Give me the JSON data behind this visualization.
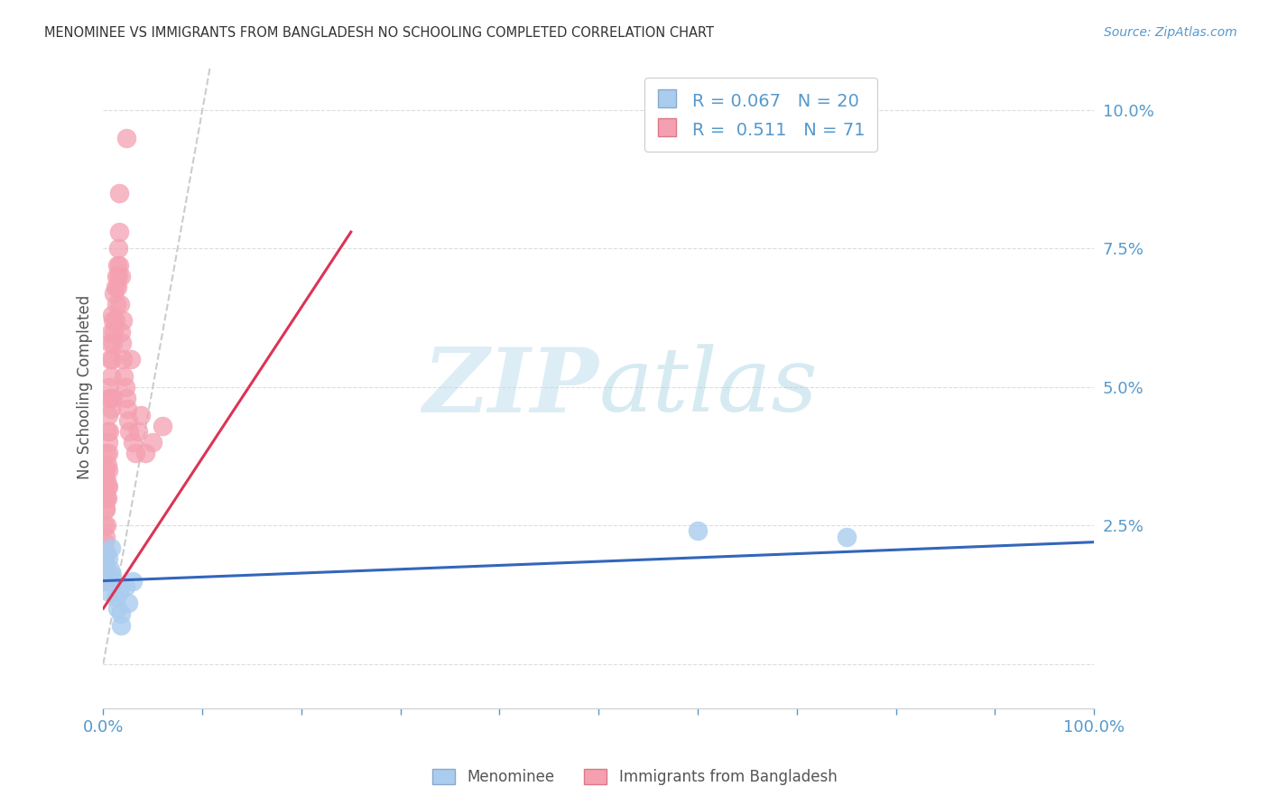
{
  "title": "MENOMINEE VS IMMIGRANTS FROM BANGLADESH NO SCHOOLING COMPLETED CORRELATION CHART",
  "source": "Source: ZipAtlas.com",
  "ylabel": "No Schooling Completed",
  "series": [
    {
      "name": "Menominee",
      "color": "#AACCEE",
      "line_color": "#3366BB",
      "R": 0.067,
      "N": 20
    },
    {
      "name": "Immigrants from Bangladesh",
      "color": "#F4A0B0",
      "line_color": "#DD3355",
      "R": 0.511,
      "N": 71
    }
  ],
  "xlim": [
    0.0,
    1.0
  ],
  "ylim": [
    -0.008,
    0.108
  ],
  "yticks": [
    0.0,
    0.025,
    0.05,
    0.075,
    0.1
  ],
  "ytick_labels": [
    "",
    "2.5%",
    "5.0%",
    "7.5%",
    "10.0%"
  ],
  "xtick_positions": [
    0.0,
    0.1,
    0.2,
    0.3,
    0.4,
    0.5,
    0.6,
    0.7,
    0.8,
    0.9,
    1.0
  ],
  "xtick_labels": [
    "0.0%",
    "",
    "",
    "",
    "",
    "",
    "",
    "",
    "",
    "",
    "100.0%"
  ],
  "grid_color": "#DDDDDD",
  "bg_color": "#FFFFFF",
  "title_color": "#333333",
  "axis_color": "#5599CC",
  "diag_color": "#CCCCCC",
  "men_x": [
    0.001,
    0.002,
    0.003,
    0.004,
    0.005,
    0.006,
    0.007,
    0.008,
    0.009,
    0.01,
    0.012,
    0.014,
    0.016,
    0.018,
    0.022,
    0.025,
    0.03,
    0.6,
    0.75,
    0.018
  ],
  "men_y": [
    0.018,
    0.015,
    0.02,
    0.016,
    0.019,
    0.013,
    0.017,
    0.021,
    0.016,
    0.015,
    0.012,
    0.01,
    0.013,
    0.009,
    0.014,
    0.011,
    0.015,
    0.024,
    0.023,
    0.007
  ],
  "ban_x": [
    0.001,
    0.001,
    0.001,
    0.002,
    0.002,
    0.002,
    0.003,
    0.003,
    0.003,
    0.004,
    0.004,
    0.004,
    0.005,
    0.005,
    0.005,
    0.005,
    0.006,
    0.006,
    0.007,
    0.007,
    0.007,
    0.008,
    0.008,
    0.008,
    0.009,
    0.009,
    0.01,
    0.01,
    0.01,
    0.011,
    0.011,
    0.012,
    0.012,
    0.013,
    0.013,
    0.014,
    0.014,
    0.015,
    0.015,
    0.016,
    0.016,
    0.017,
    0.018,
    0.018,
    0.019,
    0.02,
    0.02,
    0.021,
    0.022,
    0.023,
    0.024,
    0.025,
    0.026,
    0.028,
    0.03,
    0.032,
    0.035,
    0.038,
    0.042,
    0.05,
    0.001,
    0.001,
    0.002,
    0.002,
    0.003,
    0.004,
    0.005,
    0.006,
    0.023,
    0.016,
    0.06
  ],
  "ban_y": [
    0.018,
    0.022,
    0.015,
    0.023,
    0.028,
    0.02,
    0.03,
    0.025,
    0.033,
    0.036,
    0.03,
    0.042,
    0.04,
    0.035,
    0.045,
    0.032,
    0.05,
    0.042,
    0.055,
    0.048,
    0.058,
    0.052,
    0.06,
    0.046,
    0.063,
    0.055,
    0.062,
    0.058,
    0.048,
    0.067,
    0.06,
    0.068,
    0.062,
    0.07,
    0.065,
    0.072,
    0.068,
    0.075,
    0.07,
    0.078,
    0.072,
    0.065,
    0.07,
    0.06,
    0.058,
    0.062,
    0.055,
    0.052,
    0.05,
    0.048,
    0.046,
    0.044,
    0.042,
    0.055,
    0.04,
    0.038,
    0.042,
    0.045,
    0.038,
    0.04,
    0.025,
    0.03,
    0.028,
    0.035,
    0.038,
    0.032,
    0.038,
    0.048,
    0.095,
    0.085,
    0.043
  ],
  "men_line_x": [
    0.0,
    1.0
  ],
  "men_line_y": [
    0.015,
    0.022
  ],
  "ban_line_x": [
    0.0,
    0.25
  ],
  "ban_line_y": [
    0.01,
    0.078
  ]
}
